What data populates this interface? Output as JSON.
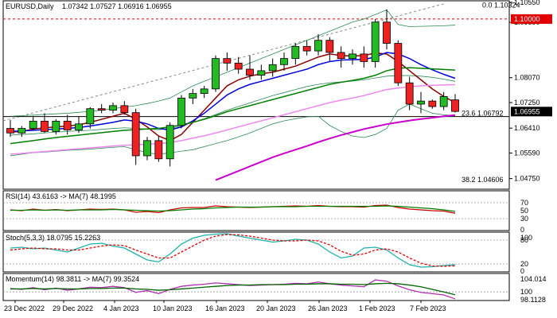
{
  "chart_data": {
    "type": "candlestick",
    "symbol_header": "EURUSD,Daily",
    "ohlc_header": "1.07342 1.07527 1.06916 1.06955",
    "x_tick_labels": [
      "23 Dec 2022",
      "29 Dec 2022",
      "4 Jan 2023",
      "10 Jan 2023",
      "16 Jan 2023",
      "20 Jan 2023",
      "26 Jan 2023",
      "1 Feb 2023",
      "7 Feb 2023"
    ],
    "price_axis": {
      "range": [
        1.044,
        1.106
      ],
      "ticks": [
        "1.10550",
        "1.09890",
        "1.08070",
        "1.07250",
        "1.06410",
        "1.05590",
        "1.04750"
      ],
      "level_tags": [
        {
          "value": 1.1,
          "label": "1.10000",
          "color": "#e00000"
        },
        {
          "value": 1.06955,
          "label": "1.06955",
          "color": "#000000"
        }
      ]
    },
    "fibonacci": [
      {
        "label": "0.0 1.10324",
        "value": 1.10324
      },
      {
        "label": "23.6 1.06792",
        "value": 1.06792
      },
      {
        "label": "38.2 1.04606",
        "value": 1.04606
      }
    ],
    "candles": [
      [
        1.064,
        1.0668,
        1.0612,
        1.0625
      ],
      [
        1.0625,
        1.0648,
        1.0612,
        1.064
      ],
      [
        1.064,
        1.0682,
        1.0634,
        1.0664
      ],
      [
        1.0664,
        1.069,
        1.0625,
        1.063
      ],
      [
        1.063,
        1.067,
        1.062,
        1.0664
      ],
      [
        1.0664,
        1.0685,
        1.062,
        1.0635
      ],
      [
        1.0635,
        1.068,
        1.0625,
        1.0655
      ],
      [
        1.0655,
        1.071,
        1.064,
        1.0705
      ],
      [
        1.0705,
        1.072,
        1.069,
        1.07
      ],
      [
        1.07,
        1.0725,
        1.069,
        1.0715
      ],
      [
        1.0715,
        1.073,
        1.0685,
        1.0692
      ],
      [
        1.0692,
        1.0705,
        1.052,
        1.055
      ],
      [
        1.055,
        1.0612,
        1.0535,
        1.06
      ],
      [
        1.06,
        1.0615,
        1.053,
        1.054
      ],
      [
        1.054,
        1.066,
        1.0515,
        1.065
      ],
      [
        1.065,
        1.075,
        1.064,
        1.074
      ],
      [
        1.074,
        1.077,
        1.072,
        1.0755
      ],
      [
        1.0755,
        1.078,
        1.074,
        1.077
      ],
      [
        1.077,
        1.088,
        1.076,
        1.087
      ],
      [
        1.087,
        1.089,
        1.083,
        1.0855
      ],
      [
        1.0855,
        1.0875,
        1.082,
        1.0835
      ],
      [
        1.0835,
        1.088,
        1.08,
        1.0815
      ],
      [
        1.0815,
        1.085,
        1.08,
        1.083
      ],
      [
        1.083,
        1.087,
        1.081,
        1.085
      ],
      [
        1.085,
        1.089,
        1.083,
        1.087
      ],
      [
        1.087,
        1.092,
        1.085,
        1.091
      ],
      [
        1.091,
        1.093,
        1.088,
        1.0895
      ],
      [
        1.0895,
        1.095,
        1.088,
        1.093
      ],
      [
        1.093,
        1.094,
        1.086,
        1.089
      ],
      [
        1.089,
        1.091,
        1.084,
        1.087
      ],
      [
        1.087,
        1.09,
        1.085,
        1.0885
      ],
      [
        1.0885,
        1.091,
        1.084,
        1.086
      ],
      [
        1.086,
        1.1,
        1.084,
        1.099
      ],
      [
        1.099,
        1.1032,
        1.09,
        1.092
      ],
      [
        1.092,
        1.093,
        1.078,
        1.079
      ],
      [
        1.079,
        1.081,
        1.07,
        1.072
      ],
      [
        1.072,
        1.076,
        1.069,
        1.073
      ],
      [
        1.073,
        1.0735,
        1.0705,
        1.0712
      ],
      [
        1.0712,
        1.076,
        1.07,
        1.0745
      ],
      [
        1.0734,
        1.0753,
        1.0692,
        1.0696
      ]
    ],
    "bollinger_bands": {
      "upper": [
        1.068,
        1.0682,
        1.0684,
        1.0686,
        1.0688,
        1.069,
        1.0693,
        1.0696,
        1.07,
        1.0705,
        1.071,
        1.0715,
        1.0722,
        1.073,
        1.074,
        1.076,
        1.078,
        1.0795,
        1.081,
        1.0825,
        1.084,
        1.0855,
        1.087,
        1.0885,
        1.09,
        1.0915,
        1.093,
        1.0945,
        1.096,
        1.0975,
        1.099,
        1.1,
        1.1015,
        1.103,
        1.0982,
        1.0975,
        1.0976,
        1.0977,
        1.0978,
        1.098
      ],
      "middle": [
        1.0618,
        1.062,
        1.0622,
        1.0625,
        1.0628,
        1.063,
        1.0632,
        1.0634,
        1.0637,
        1.064,
        1.0642,
        1.064,
        1.0638,
        1.0636,
        1.064,
        1.0648,
        1.066,
        1.0672,
        1.0686,
        1.07,
        1.0712,
        1.0724,
        1.0736,
        1.0748,
        1.0758,
        1.0768,
        1.0778,
        1.0785,
        1.079,
        1.0793,
        1.0796,
        1.08,
        1.0806,
        1.0812,
        1.0814,
        1.0814,
        1.0812,
        1.0808,
        1.0802,
        1.0795
      ],
      "lower": [
        1.055,
        1.0555,
        1.056,
        1.0562,
        1.0565,
        1.0568,
        1.057,
        1.0572,
        1.0575,
        1.0578,
        1.058,
        1.057,
        1.056,
        1.0555,
        1.056,
        1.0565,
        1.057,
        1.058,
        1.059,
        1.06,
        1.0612,
        1.0625,
        1.064,
        1.0655,
        1.0665,
        1.0672,
        1.0678,
        1.068,
        1.065,
        1.063,
        1.0615,
        1.061,
        1.062,
        1.064,
        1.07,
        1.072,
        1.0705,
        1.069,
        1.0685,
        1.0682
      ]
    },
    "moving_averages": [
      {
        "color": "#8b0000",
        "values": [
          1.0628,
          1.063,
          1.0638,
          1.0642,
          1.0645,
          1.0648,
          1.0652,
          1.066,
          1.067,
          1.068,
          1.069,
          1.067,
          1.0645,
          1.0615,
          1.06,
          1.062,
          1.066,
          1.07,
          1.074,
          1.078,
          1.08,
          1.0812,
          1.082,
          1.0825,
          1.0835,
          1.0845,
          1.086,
          1.0875,
          1.0885,
          1.088,
          1.0878,
          1.088,
          1.0888,
          1.0885,
          1.086,
          1.083,
          1.08,
          1.077,
          1.0745,
          1.0725
        ]
      },
      {
        "color": "#0000dd",
        "values": [
          1.063,
          1.0632,
          1.0634,
          1.0636,
          1.0638,
          1.064,
          1.0643,
          1.0648,
          1.0654,
          1.066,
          1.0668,
          1.0664,
          1.0655,
          1.064,
          1.0635,
          1.0645,
          1.0665,
          1.069,
          1.072,
          1.075,
          1.077,
          1.0785,
          1.0795,
          1.0805,
          1.0815,
          1.0825,
          1.0835,
          1.085,
          1.086,
          1.0865,
          1.0866,
          1.0867,
          1.0875,
          1.089,
          1.0885,
          1.087,
          1.085,
          1.0833,
          1.0818,
          1.0805
        ]
      },
      {
        "color": "#008000",
        "values": [
          1.059,
          1.0595,
          1.06,
          1.0605,
          1.061,
          1.0614,
          1.0618,
          1.0622,
          1.0626,
          1.063,
          1.0634,
          1.0636,
          1.0638,
          1.064,
          1.0645,
          1.0652,
          1.066,
          1.067,
          1.0682,
          1.0695,
          1.0705,
          1.0715,
          1.0725,
          1.0735,
          1.0745,
          1.0755,
          1.0765,
          1.0775,
          1.0785,
          1.0792,
          1.0798,
          1.0805,
          1.0815,
          1.083,
          1.0838,
          1.084,
          1.0838,
          1.0836,
          1.0834,
          1.0832
        ]
      },
      {
        "color": "#ee88ee",
        "values": [
          1.0555,
          1.0558,
          1.0561,
          1.0564,
          1.0567,
          1.057,
          1.0573,
          1.0576,
          1.0579,
          1.0582,
          1.0585,
          1.0586,
          1.0588,
          1.059,
          1.0594,
          1.06,
          1.0608,
          1.0616,
          1.0625,
          1.0635,
          1.0645,
          1.0655,
          1.0665,
          1.0675,
          1.0685,
          1.0695,
          1.0705,
          1.0715,
          1.0725,
          1.0733,
          1.074,
          1.0748,
          1.0758,
          1.0768,
          1.0773,
          1.0777,
          1.078,
          1.0782,
          1.0783,
          1.0784
        ]
      },
      {
        "color": "#cc00cc",
        "values": [
          null,
          null,
          null,
          null,
          null,
          null,
          null,
          null,
          null,
          null,
          null,
          null,
          null,
          null,
          null,
          null,
          null,
          null,
          1.047,
          1.0485,
          1.05,
          1.0515,
          1.053,
          1.0545,
          1.0558,
          1.057,
          1.0582,
          1.0595,
          1.0607,
          1.0618,
          1.0628,
          1.0638,
          1.0646,
          1.0654,
          1.066,
          1.0666,
          1.0671,
          1.0675,
          1.068,
          1.0684
        ]
      }
    ],
    "trend_lines": [
      {
        "style": "dashed",
        "color": "#888888",
        "from": [
          0,
          1.0665
        ],
        "to": [
          38,
          1.105
        ]
      },
      {
        "style": "solid",
        "color": "#000000",
        "from": [
          0,
          1.06792
        ],
        "to": [
          40,
          1.06792
        ]
      },
      {
        "style": "dashed",
        "color": "#dd0000",
        "from": [
          0,
          1.1
        ],
        "to": [
          40,
          1.1
        ]
      }
    ],
    "indicators": [
      {
        "id": "rsi",
        "header": "RSI(14) 43.6163 -> MA(7) 48.1995",
        "range": [
          0,
          100
        ],
        "ticks": [
          "70",
          "50",
          "30",
          "0"
        ],
        "levels": [
          70,
          30
        ],
        "series": [
          {
            "color": "#cc0000",
            "values": [
              52,
              50,
              54,
              51,
              53,
              50,
              52,
              54,
              53,
              54,
              52,
              46,
              48,
              45,
              52,
              57,
              58,
              58,
              62,
              60,
              59,
              58,
              59,
              60,
              61,
              62,
              61,
              63,
              61,
              60,
              60,
              59,
              63,
              64,
              58,
              54,
              52,
              50,
              49,
              43.6163
            ]
          },
          {
            "color": "#008000",
            "values": [
              51,
              51,
              52,
              51,
              52,
              51,
              52,
              52,
              52,
              53,
              52,
              51,
              50,
              49,
              50,
              52,
              54,
              55,
              57,
              58,
              59,
              59,
              59,
              60,
              60,
              60,
              61,
              61,
              61,
              61,
              61,
              61,
              61,
              62,
              61,
              59,
              57,
              55,
              52,
              48.1995
            ]
          }
        ]
      },
      {
        "id": "stoch",
        "header": "Stoch(5,3,3) 18.0795 15.2263",
        "range": [
          0,
          100
        ],
        "ticks": [
          "100",
          "80",
          "20",
          "0"
        ],
        "levels": [
          80,
          20
        ],
        "series": [
          {
            "color": "#20b2aa",
            "values": [
              60,
              62,
              58,
              60,
              55,
              50,
              60,
              70,
              72,
              65,
              60,
              45,
              30,
              25,
              45,
              70,
              85,
              92,
              95,
              96,
              90,
              85,
              80,
              75,
              78,
              82,
              80,
              70,
              50,
              35,
              40,
              60,
              62,
              55,
              35,
              18,
              12,
              13,
              16,
              18.0795
            ]
          },
          {
            "color": "#dd0000",
            "values": [
              55,
              58,
              60,
              58,
              58,
              55,
              55,
              60,
              65,
              68,
              66,
              55,
              45,
              35,
              35,
              50,
              65,
              80,
              90,
              94,
              93,
              90,
              85,
              80,
              78,
              78,
              80,
              78,
              68,
              52,
              42,
              45,
              55,
              58,
              50,
              35,
              22,
              15,
              14,
              15.2263
            ]
          }
        ]
      },
      {
        "id": "momentum",
        "header": "Momentum(14) 98.3811 -> MA(7) 99.3524",
        "range": [
          98.0,
          104.3
        ],
        "ticks": [
          "104.014",
          "100",
          "98.1128"
        ],
        "levels": [
          100
        ],
        "series": [
          {
            "color": "#b030b0",
            "values": [
              100.8,
              100.6,
              101.0,
              100.5,
              100.9,
              100.4,
              100.7,
              101.1,
              101.0,
              101.3,
              101.0,
              99.9,
              100.3,
              99.6,
              100.6,
              101.3,
              101.6,
              101.8,
              102.1,
              101.9,
              101.7,
              101.5,
              101.6,
              101.7,
              101.8,
              102.0,
              101.9,
              102.3,
              101.9,
              101.6,
              101.4,
              101.2,
              102.8,
              102.5,
              101.4,
              100.5,
              99.9,
              99.6,
              99.3,
              98.3811
            ]
          },
          {
            "color": "#006400",
            "values": [
              100.7,
              100.7,
              100.8,
              100.7,
              100.8,
              100.7,
              100.7,
              100.8,
              100.8,
              100.9,
              100.9,
              100.7,
              100.6,
              100.4,
              100.5,
              100.7,
              100.9,
              101.1,
              101.3,
              101.5,
              101.6,
              101.6,
              101.7,
              101.7,
              101.7,
              101.8,
              101.8,
              101.9,
              101.9,
              101.8,
              101.8,
              101.7,
              101.9,
              102.0,
              101.9,
              101.6,
              101.2,
              100.6,
              100.0,
              99.3524
            ]
          }
        ]
      }
    ]
  }
}
